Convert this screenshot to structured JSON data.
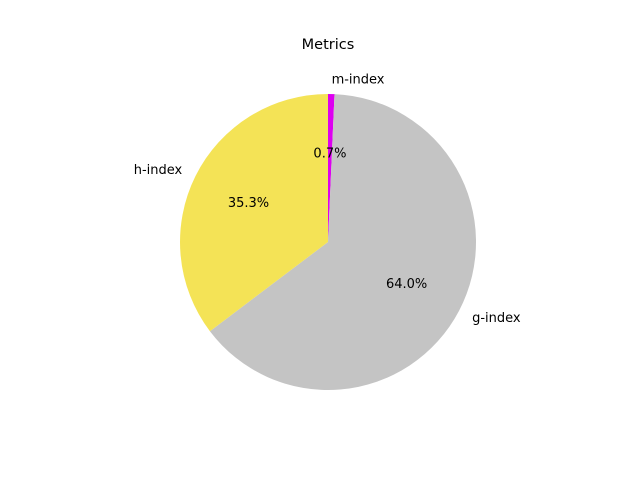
{
  "chart_data": {
    "type": "pie",
    "title": "Metrics",
    "slices": [
      {
        "label": "m-index",
        "value": 0.7,
        "pct_label": "0.7%",
        "color": "#dd00f0"
      },
      {
        "label": "g-index",
        "value": 64.0,
        "pct_label": "64.0%",
        "color": "#c4c4c4"
      },
      {
        "label": "h-index",
        "value": 35.3,
        "pct_label": "35.3%",
        "color": "#f4e356"
      }
    ],
    "start_angle_deg": 90,
    "direction": "clockwise",
    "legend": "none"
  }
}
